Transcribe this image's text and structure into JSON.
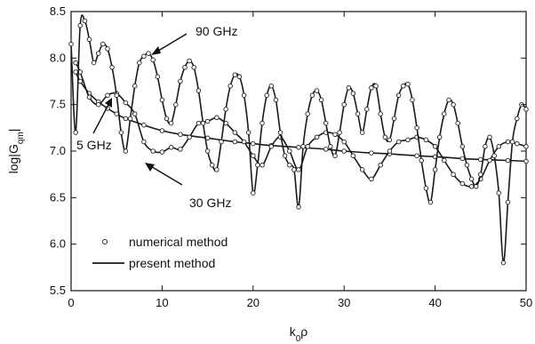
{
  "chart_data": {
    "type": "line",
    "xlabel": "k",
    "xlabel_sub": "0",
    "xlabel_tail": "ρ",
    "ylabel": "log|G",
    "ylabel_sub": "qm",
    "ylabel_tail": "|",
    "xlim": [
      0,
      50
    ],
    "ylim": [
      5.5,
      8.5
    ],
    "xticks": [
      "0",
      "10",
      "20",
      "30",
      "40",
      "50"
    ],
    "yticks": [
      "5.5",
      "6.0",
      "6.5",
      "7.0",
      "7.5",
      "8.0",
      "8.5"
    ],
    "grid": false,
    "annotations": [
      {
        "text": "90 GHz",
        "arrow_to": [
          8,
          8.05
        ]
      },
      {
        "text": "5 GHz",
        "arrow_to": [
          4,
          7.45
        ]
      },
      {
        "text": "30 GHz",
        "arrow_to": [
          13,
          6.98
        ]
      }
    ],
    "legend": {
      "placement": "bottom-left",
      "entries": [
        {
          "label": "numerical method",
          "style": "markers"
        },
        {
          "label": "present method",
          "style": "line"
        }
      ]
    },
    "series": [
      {
        "freq": "5 GHz",
        "x": [
          0.5,
          1,
          2,
          3,
          4,
          5,
          6,
          8,
          10,
          12,
          15,
          18,
          20,
          22,
          25,
          28,
          30,
          33,
          35,
          38,
          40,
          43,
          45,
          48,
          50
        ],
        "y": [
          7.85,
          7.75,
          7.62,
          7.53,
          7.46,
          7.4,
          7.35,
          7.28,
          7.22,
          7.18,
          7.14,
          7.1,
          7.08,
          7.06,
          7.04,
          7.02,
          7.0,
          6.98,
          6.97,
          6.95,
          6.94,
          6.92,
          6.91,
          6.9,
          6.89
        ]
      },
      {
        "freq": "30 GHz",
        "x": [
          0.5,
          1,
          2,
          3,
          4,
          5,
          6,
          7,
          8,
          9,
          10,
          11,
          12,
          13,
          14,
          15,
          16,
          17,
          18,
          19,
          20,
          21,
          22,
          23,
          24,
          25,
          26,
          27,
          28,
          29,
          30,
          31,
          32,
          33,
          34,
          35,
          36,
          37,
          38,
          39,
          40,
          41,
          42,
          43,
          44,
          45,
          46,
          47,
          48,
          49,
          50
        ],
        "y": [
          7.95,
          7.85,
          7.58,
          7.5,
          7.6,
          7.62,
          7.52,
          7.4,
          7.1,
          7.0,
          6.99,
          7.04,
          7.02,
          7.15,
          7.3,
          7.32,
          7.36,
          7.3,
          7.2,
          7.1,
          6.95,
          6.85,
          7.05,
          7.15,
          7.0,
          6.8,
          7.05,
          7.15,
          7.2,
          7.18,
          7.1,
          6.95,
          6.8,
          6.7,
          6.85,
          7.0,
          7.1,
          7.12,
          7.15,
          7.12,
          7.05,
          6.9,
          6.75,
          6.65,
          6.62,
          6.7,
          6.9,
          7.05,
          7.1,
          7.08,
          7.05
        ]
      },
      {
        "freq": "90 GHz",
        "x": [
          0,
          0.5,
          1,
          1.5,
          2,
          2.5,
          3,
          3.5,
          4,
          4.5,
          5,
          5.5,
          6,
          6.5,
          7,
          7.5,
          8,
          8.5,
          9,
          9.5,
          10,
          10.5,
          11,
          11.5,
          12,
          12.5,
          13,
          13.5,
          14,
          14.5,
          15,
          15.5,
          16,
          16.5,
          17,
          17.5,
          18,
          18.5,
          19,
          19.5,
          20,
          20.5,
          21,
          21.5,
          22,
          22.5,
          23,
          23.5,
          24,
          24.5,
          25,
          25.5,
          26,
          26.5,
          27,
          27.5,
          28,
          28.5,
          29,
          29.5,
          30,
          30.5,
          31,
          31.5,
          32,
          32.5,
          33,
          33.5,
          34,
          34.5,
          35,
          35.5,
          36,
          36.5,
          37,
          37.5,
          38,
          38.5,
          39,
          39.5,
          40,
          40.5,
          41,
          41.5,
          42,
          42.5,
          43,
          43.5,
          44,
          44.5,
          45,
          45.5,
          46,
          46.5,
          47,
          47.5,
          48,
          48.5,
          49,
          49.5,
          50
        ],
        "y": [
          8.15,
          7.2,
          8.35,
          8.4,
          8.2,
          7.95,
          8.05,
          8.15,
          8.1,
          7.9,
          7.6,
          7.2,
          7.0,
          7.35,
          7.7,
          7.95,
          8.02,
          8.05,
          7.98,
          7.8,
          7.55,
          7.35,
          7.3,
          7.5,
          7.75,
          7.9,
          7.97,
          7.9,
          7.65,
          7.3,
          7.0,
          6.85,
          6.8,
          7.1,
          7.45,
          7.7,
          7.82,
          7.8,
          7.6,
          7.2,
          6.55,
          6.85,
          7.3,
          7.6,
          7.7,
          7.55,
          7.2,
          6.95,
          6.85,
          6.8,
          6.4,
          7.05,
          7.4,
          7.6,
          7.65,
          7.55,
          7.3,
          7.05,
          6.95,
          7.2,
          7.5,
          7.68,
          7.62,
          7.4,
          7.2,
          7.45,
          7.68,
          7.7,
          7.4,
          7.15,
          7.12,
          7.35,
          7.6,
          7.7,
          7.72,
          7.55,
          7.25,
          6.9,
          6.6,
          6.45,
          6.8,
          7.15,
          7.4,
          7.55,
          7.5,
          7.3,
          7.05,
          6.85,
          6.7,
          6.62,
          6.75,
          7.05,
          7.15,
          6.95,
          6.55,
          5.8,
          6.45,
          7.1,
          7.35,
          7.5,
          7.45
        ]
      }
    ]
  }
}
